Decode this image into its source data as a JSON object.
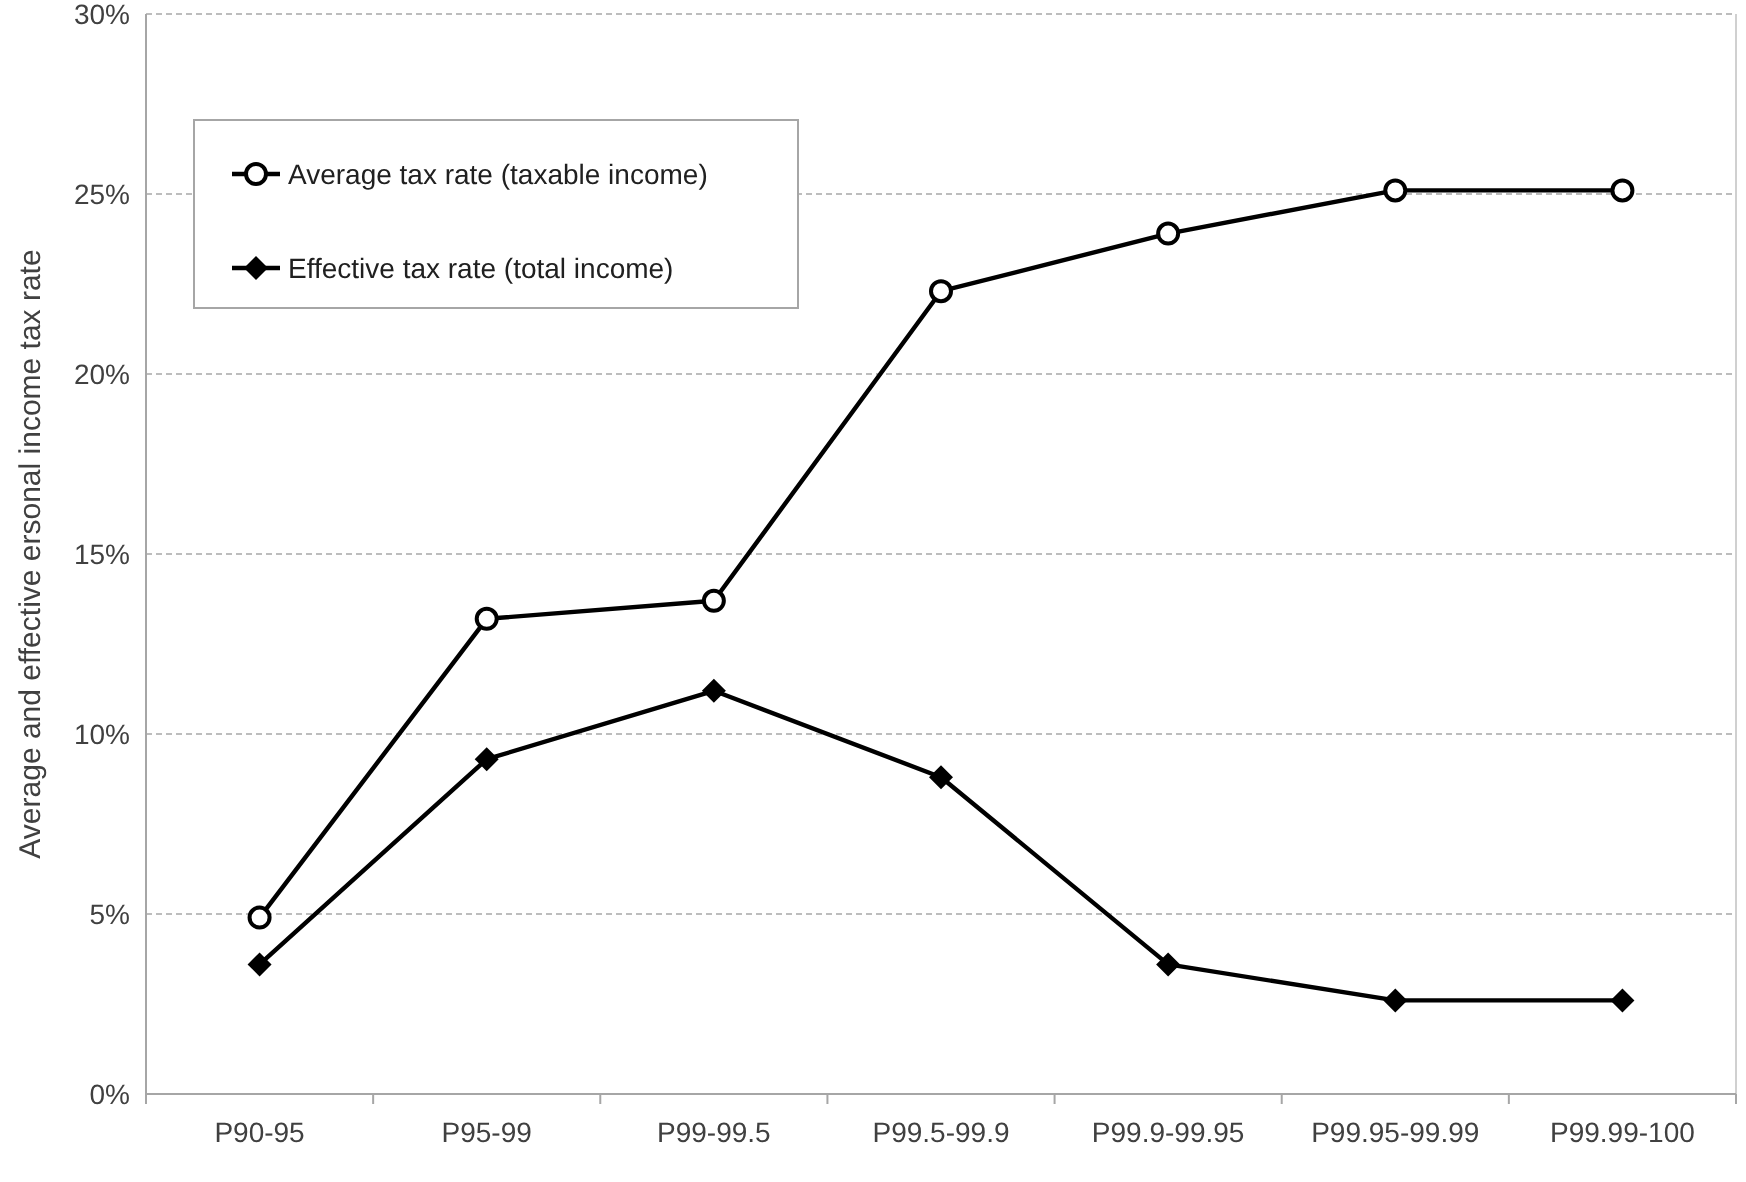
{
  "chart_data": {
    "type": "line",
    "ylabel": "Average and effective ersonal income tax rate",
    "categories": [
      "P90-95",
      "P95-99",
      "P99-99.5",
      "P99.5-99.9",
      "P99.9-99.95",
      "P99.95-99.99",
      "P99.99-100"
    ],
    "series": [
      {
        "name": "Average tax rate (taxable income)",
        "color": "#000000",
        "marker": "circle",
        "values": [
          4.9,
          13.2,
          13.7,
          22.3,
          23.9,
          25.1,
          25.1
        ]
      },
      {
        "name": "Effective tax rate (total income)",
        "color": "#000000",
        "marker": "diamond",
        "values": [
          3.6,
          9.3,
          11.2,
          8.8,
          3.6,
          2.6,
          2.6
        ]
      }
    ],
    "ylim": [
      0,
      30
    ],
    "yticks": [
      {
        "value": 0,
        "label": "0%"
      },
      {
        "value": 5,
        "label": "5%"
      },
      {
        "value": 10,
        "label": "10%"
      },
      {
        "value": 15,
        "label": "15%"
      },
      {
        "value": 20,
        "label": "20%"
      },
      {
        "value": 25,
        "label": "25%"
      },
      {
        "value": 30,
        "label": "30%"
      }
    ],
    "grid": "y",
    "legend": "top left"
  }
}
